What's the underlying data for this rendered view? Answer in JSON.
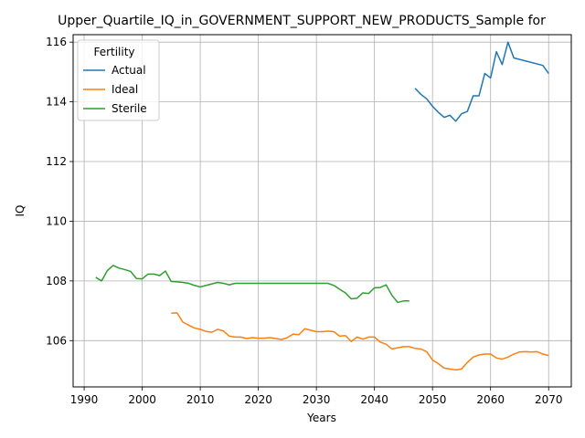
{
  "chart_data": {
    "type": "line",
    "title": "Upper_Quartile_IQ_in_GOVERNMENT_SUPPORT_NEW_PRODUCTS_Sample for",
    "xlabel": "Years",
    "ylabel": "IQ",
    "xlim": [
      1988.1,
      2073.9
    ],
    "ylim": [
      104.45,
      116.25
    ],
    "xticks": [
      1990,
      2000,
      2010,
      2020,
      2030,
      2040,
      2050,
      2060,
      2070
    ],
    "yticks": [
      106,
      108,
      110,
      112,
      114,
      116
    ],
    "grid": true,
    "legend": {
      "title": "Fertility",
      "placement": "top-left"
    },
    "series": [
      {
        "name": "Actual",
        "color": "#1f77b4",
        "x": [
          2047,
          2048,
          2049,
          2050,
          2051,
          2052,
          2053,
          2054,
          2055,
          2056,
          2057,
          2058,
          2059,
          2060,
          2061,
          2062,
          2063,
          2064,
          2069,
          2070
        ],
        "y": [
          114.45,
          114.25,
          114.1,
          113.85,
          113.65,
          113.48,
          113.55,
          113.35,
          113.6,
          113.68,
          114.2,
          114.2,
          114.95,
          114.8,
          115.68,
          115.25,
          116.0,
          115.47,
          115.22,
          114.95
        ]
      },
      {
        "name": "Ideal",
        "color": "#ff7f0e",
        "x": [
          2005,
          2006,
          2007,
          2008,
          2009,
          2010,
          2011,
          2012,
          2013,
          2014,
          2015,
          2016,
          2017,
          2018,
          2019,
          2020,
          2021,
          2022,
          2023,
          2024,
          2025,
          2026,
          2027,
          2028,
          2029,
          2030,
          2031,
          2032,
          2033,
          2034,
          2035,
          2036,
          2037,
          2038,
          2039,
          2040,
          2041,
          2042,
          2043,
          2044,
          2045,
          2046,
          2047,
          2048,
          2049,
          2050,
          2051,
          2052,
          2053,
          2054,
          2055,
          2056,
          2057,
          2058,
          2059,
          2060,
          2061,
          2062,
          2063,
          2064,
          2065,
          2066,
          2067,
          2068,
          2069,
          2070
        ],
        "y": [
          106.92,
          106.93,
          106.62,
          106.52,
          106.42,
          106.38,
          106.31,
          106.28,
          106.38,
          106.32,
          106.15,
          106.12,
          106.12,
          106.07,
          106.1,
          106.08,
          106.08,
          106.1,
          106.07,
          106.04,
          106.1,
          106.22,
          106.2,
          106.4,
          106.35,
          106.3,
          106.3,
          106.32,
          106.3,
          106.15,
          106.17,
          105.97,
          106.12,
          106.05,
          106.12,
          106.12,
          105.95,
          105.88,
          105.72,
          105.76,
          105.8,
          105.8,
          105.74,
          105.72,
          105.63,
          105.35,
          105.23,
          105.08,
          105.05,
          105.02,
          105.05,
          105.27,
          105.45,
          105.52,
          105.55,
          105.55,
          105.42,
          105.38,
          105.45,
          105.55,
          105.62,
          105.63,
          105.62,
          105.63,
          105.55,
          105.5
        ]
      },
      {
        "name": "Sterile",
        "color": "#2ca02c",
        "x": [
          1992,
          1993,
          1994,
          1995,
          1996,
          1997,
          1998,
          1999,
          2000,
          2001,
          2002,
          2003,
          2004,
          2005,
          2006,
          2007,
          2008,
          2009,
          2010,
          2011,
          2012,
          2013,
          2014,
          2015,
          2016,
          2017,
          2018,
          2019,
          2020,
          2021,
          2022,
          2023,
          2024,
          2025,
          2026,
          2027,
          2028,
          2029,
          2030,
          2031,
          2032,
          2033,
          2034,
          2035,
          2036,
          2037,
          2038,
          2039,
          2040,
          2041,
          2042,
          2043,
          2044,
          2045,
          2046
        ],
        "y": [
          108.12,
          108.0,
          108.35,
          108.52,
          108.43,
          108.38,
          108.32,
          108.08,
          108.07,
          108.23,
          108.23,
          108.18,
          108.33,
          107.98,
          107.97,
          107.95,
          107.92,
          107.85,
          107.8,
          107.85,
          107.9,
          107.95,
          107.92,
          107.87,
          107.92,
          107.92,
          107.92,
          107.92,
          107.92,
          107.92,
          107.92,
          107.92,
          107.92,
          107.92,
          107.92,
          107.92,
          107.92,
          107.92,
          107.92,
          107.92,
          107.92,
          107.85,
          107.72,
          107.6,
          107.4,
          107.42,
          107.6,
          107.58,
          107.77,
          107.78,
          107.87,
          107.52,
          107.28,
          107.33,
          107.33
        ]
      }
    ]
  }
}
